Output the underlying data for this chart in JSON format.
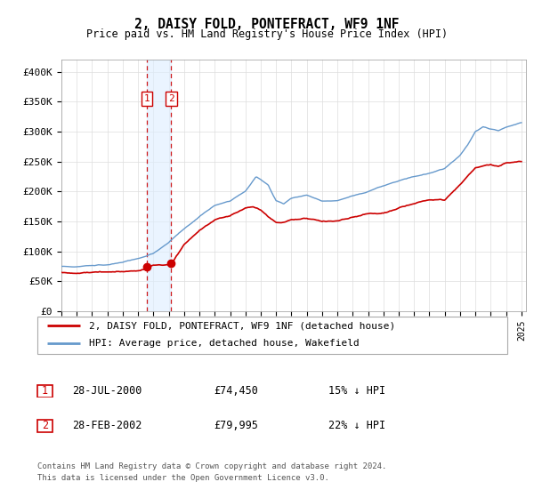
{
  "title": "2, DAISY FOLD, PONTEFRACT, WF9 1NF",
  "subtitle": "Price paid vs. HM Land Registry's House Price Index (HPI)",
  "legend_line1": "2, DAISY FOLD, PONTEFRACT, WF9 1NF (detached house)",
  "legend_line2": "HPI: Average price, detached house, Wakefield",
  "table_rows": [
    {
      "num": "1",
      "date": "28-JUL-2000",
      "price": "£74,450",
      "hpi": "15% ↓ HPI"
    },
    {
      "num": "2",
      "date": "28-FEB-2002",
      "price": "£79,995",
      "hpi": "22% ↓ HPI"
    }
  ],
  "footnote1": "Contains HM Land Registry data © Crown copyright and database right 2024.",
  "footnote2": "This data is licensed under the Open Government Licence v3.0.",
  "hpi_color": "#6699cc",
  "price_color": "#cc0000",
  "vline_color": "#cc0000",
  "highlight_color": "#ddeeff",
  "ylim": [
    0,
    420000
  ],
  "yticks": [
    0,
    50000,
    100000,
    150000,
    200000,
    250000,
    300000,
    350000,
    400000
  ],
  "t1_year": 2000.583,
  "t2_year": 2002.167,
  "t1_price": 74450,
  "t2_price": 79995
}
